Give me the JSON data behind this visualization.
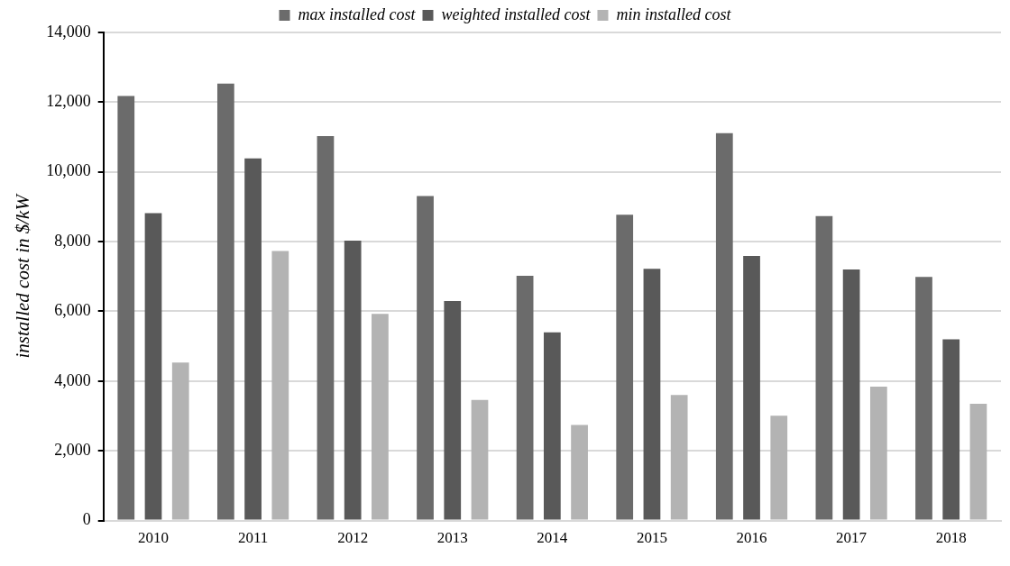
{
  "chart_data": {
    "type": "bar",
    "ylabel": "installed cost in $/kW",
    "categories": [
      "2010",
      "2011",
      "2012",
      "2013",
      "2014",
      "2015",
      "2016",
      "2017",
      "2018"
    ],
    "series": [
      {
        "name": "max installed cost",
        "color": "#6b6b6b",
        "values": [
          12180,
          12530,
          11030,
          9310,
          7020,
          8770,
          11110,
          8730,
          6990
        ]
      },
      {
        "name": "weighted installed cost",
        "color": "#595959",
        "values": [
          8820,
          10390,
          8030,
          6300,
          5400,
          7220,
          7590,
          7200,
          5200
        ]
      },
      {
        "name": "min installed cost",
        "color": "#b3b3b3",
        "values": [
          4530,
          7730,
          5930,
          3460,
          2740,
          3600,
          3010,
          3840,
          3350
        ]
      }
    ],
    "ylim": [
      0,
      14000
    ],
    "yticks": [
      0,
      {
        "value": 2000,
        "label": "2,000"
      },
      {
        "value": 4000,
        "label": "4,000"
      },
      {
        "value": 6000,
        "label": "6,000"
      },
      {
        "value": 8000,
        "label": "8,000"
      },
      {
        "value": 10000,
        "label": "10,000"
      },
      {
        "value": 12000,
        "label": "12,000"
      },
      {
        "value": 14000,
        "label": "14,000"
      }
    ],
    "grid": "y",
    "legend": "top"
  }
}
